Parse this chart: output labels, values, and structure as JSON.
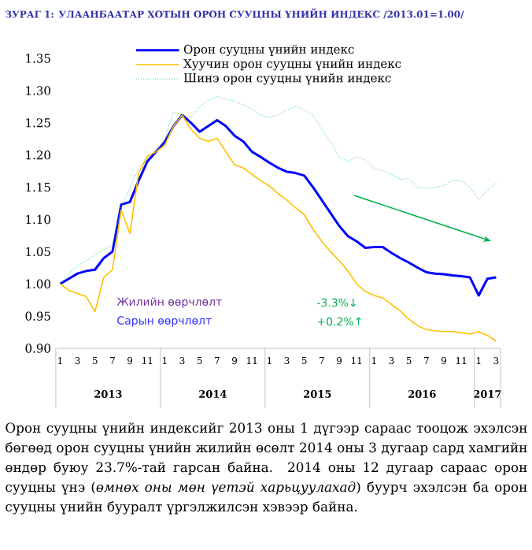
{
  "chart_data": {
    "type": "line",
    "title": "ЗУРАГ 1: УЛААНБААТАР ХОТЫН ОРОН СУУЦНЫ ҮНИЙН ИНДЕКС /2013.01=1.00/",
    "categories": [
      "1",
      null,
      "3",
      null,
      "5",
      null,
      "7",
      null,
      "9",
      null,
      "11",
      null,
      "1",
      null,
      "3",
      null,
      "5",
      null,
      "7",
      null,
      "9",
      null,
      "11",
      null,
      "1",
      null,
      "3",
      null,
      "5",
      null,
      "7",
      null,
      "9",
      null,
      "11",
      null,
      "1",
      null,
      "3",
      null,
      "5",
      null,
      "7",
      null,
      "9",
      null,
      "11",
      null,
      "1",
      null,
      "3"
    ],
    "series": [
      {
        "name": "Орон сууцны үнийн индекс",
        "color": "#0000ff",
        "line_style": "solid",
        "values": [
          1.0,
          1.008,
          1.016,
          1.02,
          1.022,
          1.04,
          1.05,
          1.123,
          1.127,
          1.16,
          1.19,
          1.205,
          1.22,
          1.245,
          1.262,
          1.25,
          1.236,
          1.245,
          1.254,
          1.245,
          1.23,
          1.221,
          1.205,
          1.197,
          1.188,
          1.18,
          1.174,
          1.172,
          1.168,
          1.15,
          1.13,
          1.11,
          1.09,
          1.074,
          1.066,
          1.056,
          1.057,
          1.057,
          1.048,
          1.04,
          1.033,
          1.025,
          1.018,
          1.016,
          1.015,
          1.013,
          1.012,
          1.01,
          0.982,
          1.008,
          1.01
        ]
      },
      {
        "name": "Хуучин орон сууцны үнийн индекс",
        "color": "#ffc000",
        "line_style": "solid",
        "values": [
          1.0,
          0.99,
          0.985,
          0.98,
          0.957,
          1.01,
          1.022,
          1.115,
          1.078,
          1.172,
          1.198,
          1.205,
          1.215,
          1.245,
          1.262,
          1.24,
          1.226,
          1.221,
          1.226,
          1.205,
          1.185,
          1.18,
          1.17,
          1.16,
          1.152,
          1.14,
          1.13,
          1.118,
          1.107,
          1.085,
          1.066,
          1.05,
          1.036,
          1.02,
          1.0,
          0.988,
          0.982,
          0.978,
          0.968,
          0.958,
          0.945,
          0.935,
          0.929,
          0.927,
          0.926,
          0.926,
          0.924,
          0.922,
          0.926,
          0.92,
          0.911
        ]
      },
      {
        "name": "Шинэ орон сууцны үнийн индекс",
        "color": "#33cc77",
        "line_style": "dotted",
        "values": [
          1.0,
          1.015,
          1.029,
          1.035,
          1.045,
          1.053,
          1.06,
          1.119,
          1.148,
          1.18,
          1.195,
          1.205,
          1.225,
          1.266,
          1.262,
          1.258,
          1.275,
          1.285,
          1.291,
          1.287,
          1.283,
          1.278,
          1.271,
          1.262,
          1.258,
          1.262,
          1.27,
          1.275,
          1.27,
          1.262,
          1.24,
          1.22,
          1.197,
          1.19,
          1.197,
          1.192,
          1.18,
          1.176,
          1.17,
          1.162,
          1.164,
          1.15,
          1.148,
          1.15,
          1.152,
          1.16,
          1.16,
          1.15,
          1.131,
          1.145,
          1.157
        ]
      }
    ],
    "ylim": [
      0.9,
      1.35
    ],
    "yticks": [
      {
        "value": 0.9,
        "label": "0.90"
      },
      0.95,
      {
        "value": 1.0,
        "label": "1.00"
      },
      1.05,
      {
        "value": 1.1,
        "label": "1.10"
      },
      1.15,
      {
        "value": 1.2,
        "label": "1.20"
      },
      1.25,
      {
        "value": 1.3,
        "label": "1.30"
      },
      1.35
    ],
    "legend": "top",
    "annotations": [
      "Жилийн өөрчлөлт",
      "Сарын өөрчлөлт",
      "-3.3%↓",
      "+0.2%↑",
      "2013",
      "2014",
      "2015",
      "2016",
      "2017",
      "Орон сууцны үнийн индексийг 2013 оны 1 дүгээр сараас тооцож эхэлсэн бөгөөд орон сууцны үнийн жилийн өсөлт 2014 оны 3 дугаар сард хамгийн өндөр буюу 23.7%-тай гарсан байна. 2014 оны 12 дугаар сараас орон сууцны үнэ (*өмнөх оны мөн үетэй харьцуулахад*) буурч эхэлсэн ба орон сууцны үнийн бууралт үргэлжилсэн хэвээр байна."
    ]
  }
}
